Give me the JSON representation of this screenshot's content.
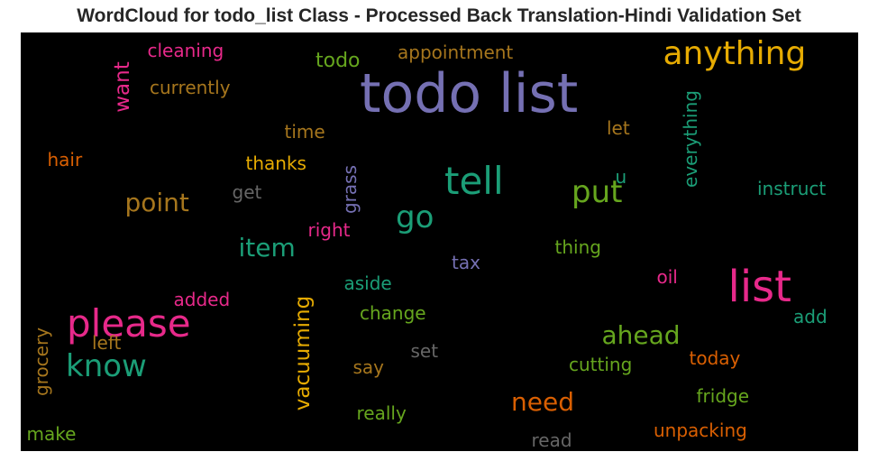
{
  "title": "WordCloud for todo_list Class - Processed Back Translation-Hindi Validation Set",
  "chart_data": {
    "type": "wordcloud",
    "words": [
      {
        "text": "todo list",
        "color": "#7570b3"
      },
      {
        "text": "anything",
        "color": "#e6ab02"
      },
      {
        "text": "list",
        "color": "#e7298a"
      },
      {
        "text": "please",
        "color": "#e7298a"
      },
      {
        "text": "tell",
        "color": "#1b9e77"
      },
      {
        "text": "put",
        "color": "#66a61e"
      },
      {
        "text": "know",
        "color": "#1b9e77"
      },
      {
        "text": "go",
        "color": "#1b9e77"
      },
      {
        "text": "point",
        "color": "#a6761d"
      },
      {
        "text": "item",
        "color": "#1b9e77"
      },
      {
        "text": "need",
        "color": "#d95f02"
      },
      {
        "text": "ahead",
        "color": "#66a61e"
      },
      {
        "text": "vacuuming",
        "color": "#e6ab02",
        "vertical": true
      },
      {
        "text": "want",
        "color": "#e7298a",
        "vertical": true
      },
      {
        "text": "todo",
        "color": "#66a61e"
      },
      {
        "text": "appointment",
        "color": "#a6761d"
      },
      {
        "text": "cleaning",
        "color": "#e7298a"
      },
      {
        "text": "currently",
        "color": "#a6761d"
      },
      {
        "text": "everything",
        "color": "#1b9e77",
        "vertical": true
      },
      {
        "text": "time",
        "color": "#a6761d"
      },
      {
        "text": "let",
        "color": "#a6761d"
      },
      {
        "text": "hair",
        "color": "#d95f02"
      },
      {
        "text": "thanks",
        "color": "#e6ab02"
      },
      {
        "text": "u",
        "color": "#1b9e77"
      },
      {
        "text": "instruct",
        "color": "#1b9e77"
      },
      {
        "text": "get",
        "color": "#666666"
      },
      {
        "text": "grass",
        "color": "#7570b3",
        "vertical": true
      },
      {
        "text": "right",
        "color": "#e7298a"
      },
      {
        "text": "thing",
        "color": "#66a61e"
      },
      {
        "text": "tax",
        "color": "#7570b3"
      },
      {
        "text": "oil",
        "color": "#e7298a"
      },
      {
        "text": "aside",
        "color": "#1b9e77"
      },
      {
        "text": "added",
        "color": "#e7298a"
      },
      {
        "text": "change",
        "color": "#66a61e"
      },
      {
        "text": "add",
        "color": "#1b9e77"
      },
      {
        "text": "left",
        "color": "#a6761d"
      },
      {
        "text": "grocery",
        "color": "#a6761d",
        "vertical": true
      },
      {
        "text": "set",
        "color": "#666666"
      },
      {
        "text": "say",
        "color": "#a6761d"
      },
      {
        "text": "cutting",
        "color": "#66a61e"
      },
      {
        "text": "today",
        "color": "#d95f02"
      },
      {
        "text": "fridge",
        "color": "#66a61e"
      },
      {
        "text": "really",
        "color": "#66a61e"
      },
      {
        "text": "unpacking",
        "color": "#d95f02"
      },
      {
        "text": "make",
        "color": "#66a61e"
      },
      {
        "text": "read",
        "color": "#666666"
      }
    ]
  }
}
